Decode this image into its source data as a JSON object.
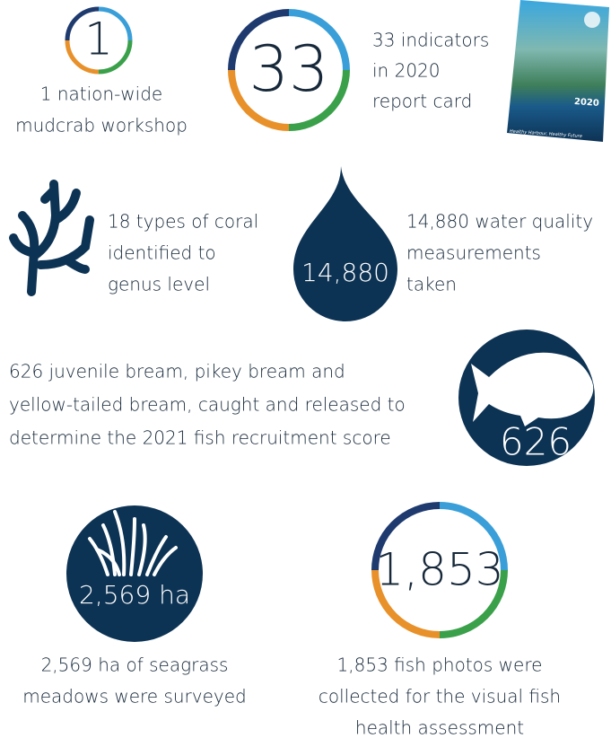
{
  "items": [
    {
      "number": "1",
      "caption": [
        "1 nation-wide",
        "mudcrab workshop"
      ]
    },
    {
      "number": "33",
      "caption": [
        "33 indicators",
        "in 2020",
        "report card"
      ],
      "cover": {
        "year": "2020",
        "tagline": "Healthy Harbour, Healthy Future"
      }
    },
    {
      "caption": [
        "18 types of coral",
        "identified to",
        "genus level"
      ]
    },
    {
      "number": "14,880",
      "caption": [
        "14,880 water quality",
        "measurements",
        "taken"
      ]
    },
    {
      "number": "626",
      "caption": [
        "626 juvenile bream, pikey bream and",
        "yellow-tailed bream, caught and released to",
        "determine the 2021 fish recruitment score"
      ]
    },
    {
      "number": "2,569 ha",
      "caption": [
        "2,569 ha of seagrass",
        "meadows were surveyed"
      ]
    },
    {
      "number": "1,853",
      "caption": [
        "1,853 fish photos were",
        "collected for the visual fish",
        "health assessment"
      ]
    }
  ]
}
